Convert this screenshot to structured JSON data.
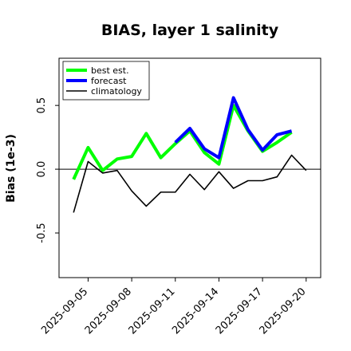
{
  "chart_data": {
    "type": "line",
    "title": "BIAS, layer 1 salinity",
    "xlabel": "",
    "ylabel": "Bias (1e-3)",
    "x": [
      "2025-09-04",
      "2025-09-05",
      "2025-09-06",
      "2025-09-07",
      "2025-09-08",
      "2025-09-09",
      "2025-09-10",
      "2025-09-11",
      "2025-09-12",
      "2025-09-13",
      "2025-09-14",
      "2025-09-15",
      "2025-09-16",
      "2025-09-17",
      "2025-09-18",
      "2025-09-19",
      "2025-09-20"
    ],
    "x_ticks": [
      "2025-09-05",
      "2025-09-08",
      "2025-09-11",
      "2025-09-14",
      "2025-09-17",
      "2025-09-20"
    ],
    "x_tick_colors": [
      "#000000",
      "#000000",
      "#228b22",
      "#000000",
      "#000000",
      "#000000"
    ],
    "xlim": [
      "2025-09-03",
      "2025-09-21"
    ],
    "ylim": [
      -0.85,
      0.87
    ],
    "y_ticks": [
      -0.5,
      0.0,
      0.5
    ],
    "y_tick_labels": [
      "-0.5",
      "0.0",
      "0.5"
    ],
    "zero_line": true,
    "grid": false,
    "legend_position": "top-left",
    "series": [
      {
        "name": "best est.",
        "color": "#00ff00",
        "values": [
          -0.08,
          0.17,
          -0.01,
          0.08,
          0.1,
          0.28,
          0.09,
          0.2,
          0.3,
          0.13,
          0.04,
          0.5,
          0.3,
          0.14,
          0.21,
          0.29,
          null
        ]
      },
      {
        "name": "forecast",
        "color": "#0000ff",
        "values": [
          null,
          null,
          null,
          null,
          null,
          null,
          null,
          0.21,
          0.32,
          0.16,
          0.09,
          0.56,
          0.31,
          0.15,
          0.27,
          0.3,
          null
        ]
      },
      {
        "name": "climatology",
        "color": "#000000",
        "values": [
          -0.34,
          0.06,
          -0.03,
          -0.01,
          -0.17,
          -0.29,
          -0.18,
          -0.18,
          -0.04,
          -0.16,
          -0.02,
          -0.15,
          -0.09,
          -0.09,
          -0.06,
          0.11,
          -0.01
        ]
      }
    ]
  }
}
